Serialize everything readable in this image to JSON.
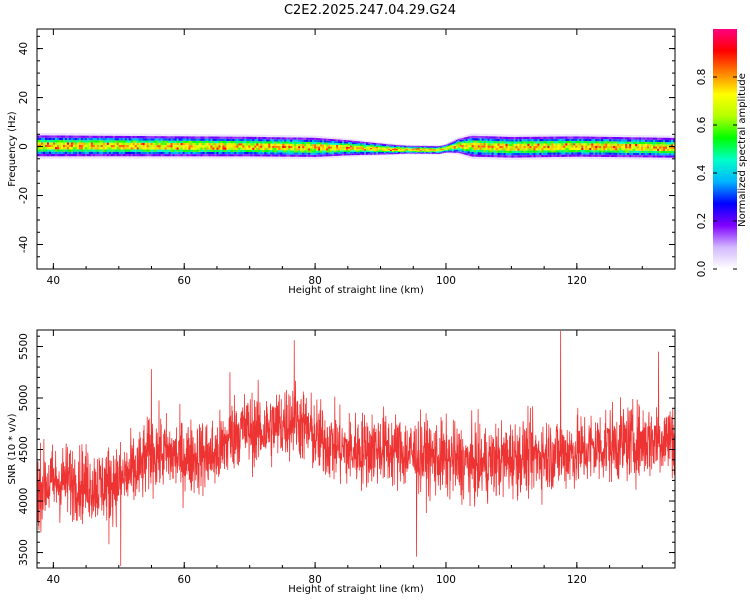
{
  "title": "C2E2.2025.247.04.29.G24",
  "chart_data": [
    {
      "type": "heatmap",
      "xlabel": "Height of straight line (km)",
      "ylabel": "Frequency (Hz)",
      "xlim": [
        37.5,
        135
      ],
      "ylim": [
        -50,
        48
      ],
      "xticks": [
        40,
        60,
        80,
        100,
        120
      ],
      "yticks": [
        -40,
        -20,
        0,
        20,
        40
      ],
      "colorbar": {
        "label": "Normalized spectral amplitude",
        "range": [
          0.0,
          1.0
        ],
        "ticks": [
          0.0,
          0.2,
          0.4,
          0.6,
          0.8
        ],
        "tick_labels": [
          "0.0",
          "0.2",
          "0.4",
          "0.6",
          "0.8"
        ],
        "colormap": [
          "#ffffff",
          "#d2b8ff",
          "#8000ff",
          "#0000ff",
          "#00b4ff",
          "#00ffc8",
          "#00ff00",
          "#b4ff00",
          "#ffff00",
          "#ff8000",
          "#ff0000",
          "#ff0080"
        ]
      },
      "band": {
        "center_hz": [
          [
            38,
            0.3
          ],
          [
            50,
            0.2
          ],
          [
            70,
            0
          ],
          [
            85,
            -0.5
          ],
          [
            92,
            -1.2
          ],
          [
            99,
            -1.4
          ],
          [
            102,
            0.3
          ],
          [
            110,
            -0.3
          ],
          [
            120,
            0
          ],
          [
            135,
            -0.5
          ]
        ],
        "halfwidth_hz": [
          [
            38,
            3.5
          ],
          [
            80,
            3.2
          ],
          [
            94,
            1.3
          ],
          [
            100,
            1.3
          ],
          [
            104,
            3.5
          ],
          [
            135,
            3.3
          ]
        ],
        "description": "narrow high-amplitude band near 0 Hz across all heights"
      }
    },
    {
      "type": "line",
      "xlabel": "Height of straight line (km)",
      "ylabel": "SNR (10 * v/v)",
      "xlim": [
        37.5,
        135
      ],
      "ylim": [
        3350,
        5660
      ],
      "xticks": [
        40,
        60,
        80,
        100,
        120
      ],
      "yticks": [
        3500,
        4000,
        4500,
        5000,
        5500
      ],
      "color": "#ee3333",
      "trend": {
        "x": [
          37.5,
          42,
          47,
          50,
          53,
          55,
          60,
          65,
          68,
          72,
          75,
          77,
          80,
          85,
          90,
          95,
          100,
          105,
          110,
          115,
          120,
          125,
          130,
          135
        ],
        "y": [
          4150,
          4200,
          4150,
          4200,
          4300,
          4480,
          4420,
          4450,
          4700,
          4680,
          4750,
          4800,
          4620,
          4480,
          4520,
          4450,
          4400,
          4350,
          4420,
          4450,
          4480,
          4550,
          4580,
          4620
        ]
      },
      "noise_amplitude": 330,
      "sample_count": 2600,
      "extremes": [
        {
          "x": 37.8,
          "y": 3720
        },
        {
          "x": 48.5,
          "y": 3580
        },
        {
          "x": 50.3,
          "y": 3370
        },
        {
          "x": 55.0,
          "y": 5280
        },
        {
          "x": 67.0,
          "y": 5250
        },
        {
          "x": 76.8,
          "y": 5560
        },
        {
          "x": 95.5,
          "y": 3460
        },
        {
          "x": 117.5,
          "y": 5650
        },
        {
          "x": 132.5,
          "y": 5450
        }
      ]
    }
  ]
}
